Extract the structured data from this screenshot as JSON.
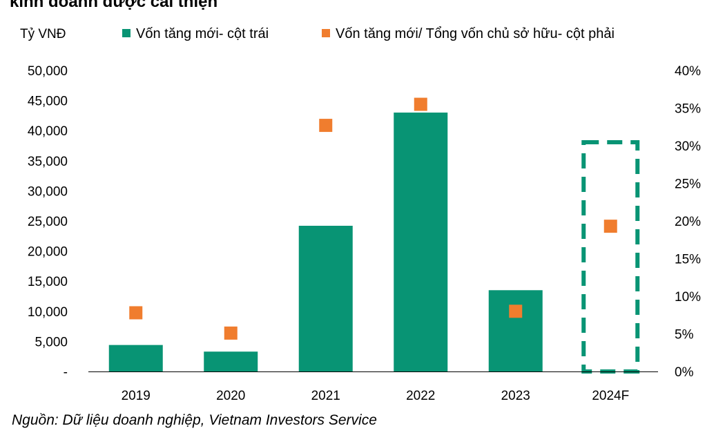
{
  "title": "kinh doanh được cải thiện",
  "source": "Nguồn: Dữ liệu doanh nghiệp, Vietnam Investors Service",
  "colors": {
    "bar": "#089474",
    "marker": "#F07D2E",
    "highlight": "#089474",
    "axis": "#000000"
  },
  "chart_data": {
    "type": "bar",
    "categories": [
      "2019",
      "2020",
      "2021",
      "2022",
      "2023",
      "2024F"
    ],
    "y_left_label": "Tỷ VNĐ",
    "ylim_left": [
      0,
      50000
    ],
    "ylim_right": [
      0,
      40
    ],
    "y_left_ticks": [
      "-",
      "5,000",
      "10,000",
      "15,000",
      "20,000",
      "25,000",
      "30,000",
      "35,000",
      "40,000",
      "45,000",
      "50,000"
    ],
    "y_right_ticks": [
      "0%",
      "5%",
      "10%",
      "15%",
      "20%",
      "25%",
      "30%",
      "35%",
      "40%"
    ],
    "grid": false,
    "legend_position": "top",
    "series": [
      {
        "name": "Vốn tăng mới- cột trái",
        "type": "bar",
        "axis": "left",
        "values": [
          4400,
          3300,
          24200,
          43000,
          13500,
          null
        ]
      },
      {
        "name": "Vốn tăng mới/ Tổng vốn chủ sở hữu- cột phải",
        "type": "marker",
        "axis": "right",
        "values": [
          7.8,
          5.1,
          32.7,
          35.5,
          8.0,
          19.3
        ]
      }
    ],
    "highlighted_category": "2024F"
  }
}
